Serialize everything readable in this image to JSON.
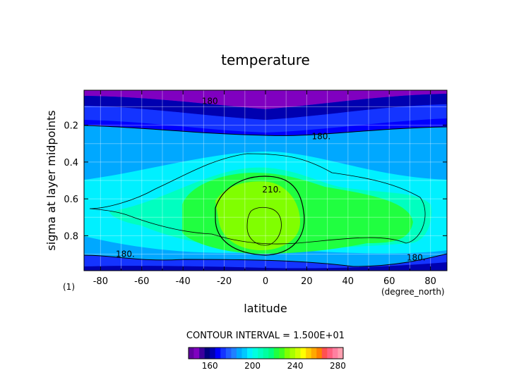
{
  "chart_data": {
    "type": "heatmap",
    "title": "temperature",
    "xlabel": "latitude",
    "ylabel": "sigma at layer midpoints",
    "x_units": "(degree_north)",
    "panel_label": "(1)",
    "xlim": [
      -88,
      88
    ],
    "ylim": [
      0.01,
      0.99
    ],
    "y_reversed": true,
    "x_ticks": [
      -80,
      -60,
      -40,
      -20,
      0,
      20,
      40,
      60,
      80
    ],
    "x_tick_labels": [
      "-80",
      "-60",
      "-40",
      "-20",
      "0",
      "20",
      "40",
      "60",
      "80"
    ],
    "y_ticks": [
      0.2,
      0.4,
      0.6,
      0.8
    ],
    "y_tick_labels": [
      "0.2",
      "0.4",
      "0.6",
      "0.8"
    ],
    "grid": true,
    "contour_interval_text": "CONTOUR INTERVAL = 1.500E+01",
    "contour_levels": [
      180,
      210
    ],
    "contour_labels": [
      {
        "text": "180.",
        "x": -68,
        "y": 0.9
      },
      {
        "text": "180.",
        "x": 27,
        "y": 0.26
      },
      {
        "text": "210.",
        "x": 3,
        "y": 0.55
      },
      {
        "text": "180.",
        "x": 73,
        "y": 0.92
      },
      {
        "text": "180",
        "x": -27,
        "y": 0.07
      }
    ],
    "colorbar": {
      "ticks": [
        160,
        200,
        240,
        280
      ],
      "tick_labels": [
        "160",
        "200",
        "240",
        "280"
      ],
      "levels": [
        140,
        145,
        150,
        155,
        160,
        165,
        170,
        175,
        180,
        185,
        190,
        195,
        200,
        205,
        210,
        215,
        220,
        225,
        230,
        235,
        240,
        245,
        250,
        255,
        260,
        265,
        270,
        275,
        280,
        285
      ],
      "colors": [
        "#6000a0",
        "#8000c0",
        "#3c009c",
        "#000080",
        "#0000b0",
        "#0000ff",
        "#1434ff",
        "#205cff",
        "#2080ff",
        "#00a8ff",
        "#00c8ff",
        "#00f0ff",
        "#00ffe0",
        "#00ffc0",
        "#00ffa0",
        "#00ff80",
        "#20ff40",
        "#40ff20",
        "#80ff00",
        "#a8ff00",
        "#d0ff00",
        "#ffff00",
        "#ffd000",
        "#ffa800",
        "#ff8000",
        "#ff5050",
        "#ff6080",
        "#ff80a0",
        "#ffa0b0"
      ]
    },
    "bands": [
      {
        "sigma": 0.01,
        "t": 160
      },
      {
        "sigma": 0.05,
        "t": 165
      },
      {
        "sigma": 0.1,
        "t": 172
      },
      {
        "sigma": 0.2,
        "t": 180
      },
      {
        "sigma": 0.35,
        "t": 190
      },
      {
        "sigma": 0.5,
        "t": 205
      },
      {
        "sigma": 0.7,
        "t": 215
      },
      {
        "sigma": 0.85,
        "t": 205
      },
      {
        "sigma": 0.95,
        "t": 180
      },
      {
        "sigma": 0.99,
        "t": 165
      }
    ]
  }
}
